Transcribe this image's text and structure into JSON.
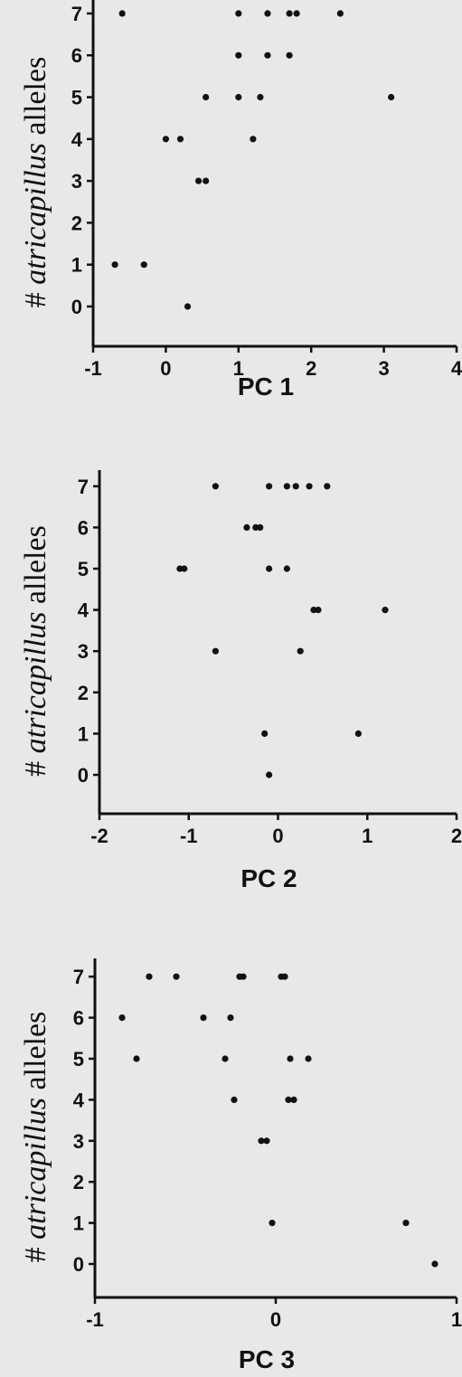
{
  "chart_data": [
    {
      "type": "scatter",
      "xlabel": "PC 1",
      "ylabel_parts": [
        "# ",
        "atricapillus",
        " alleles"
      ],
      "xlim": [
        -1,
        4
      ],
      "ylim": [
        -1,
        7
      ],
      "x_ticks": [
        -1,
        0,
        1,
        2,
        3,
        4
      ],
      "y_ticks": [
        0,
        1,
        2,
        3,
        4,
        5,
        6,
        7
      ],
      "points": [
        {
          "x": -0.6,
          "y": 7
        },
        {
          "x": 1.0,
          "y": 7
        },
        {
          "x": 1.4,
          "y": 7
        },
        {
          "x": 1.7,
          "y": 7
        },
        {
          "x": 1.8,
          "y": 7
        },
        {
          "x": 2.4,
          "y": 7
        },
        {
          "x": 1.0,
          "y": 6
        },
        {
          "x": 1.4,
          "y": 6
        },
        {
          "x": 1.7,
          "y": 6
        },
        {
          "x": 0.55,
          "y": 5
        },
        {
          "x": 1.0,
          "y": 5
        },
        {
          "x": 1.3,
          "y": 5
        },
        {
          "x": 3.1,
          "y": 5
        },
        {
          "x": 0.0,
          "y": 4
        },
        {
          "x": 0.2,
          "y": 4
        },
        {
          "x": 1.2,
          "y": 4
        },
        {
          "x": 0.45,
          "y": 3
        },
        {
          "x": 0.55,
          "y": 3
        },
        {
          "x": -0.7,
          "y": 1
        },
        {
          "x": -0.3,
          "y": 1
        },
        {
          "x": 0.3,
          "y": 0
        }
      ]
    },
    {
      "type": "scatter",
      "xlabel": "PC 2",
      "ylabel_parts": [
        "# ",
        "atricapillus",
        " alleles"
      ],
      "xlim": [
        -2,
        2
      ],
      "ylim": [
        -1,
        7
      ],
      "x_ticks": [
        -2,
        -1,
        0,
        1,
        2
      ],
      "y_ticks": [
        0,
        1,
        2,
        3,
        4,
        5,
        6,
        7
      ],
      "points": [
        {
          "x": -0.7,
          "y": 7
        },
        {
          "x": -0.1,
          "y": 7
        },
        {
          "x": 0.1,
          "y": 7
        },
        {
          "x": 0.2,
          "y": 7
        },
        {
          "x": 0.35,
          "y": 7
        },
        {
          "x": 0.55,
          "y": 7
        },
        {
          "x": -0.35,
          "y": 6
        },
        {
          "x": -0.25,
          "y": 6
        },
        {
          "x": -0.2,
          "y": 6
        },
        {
          "x": -1.1,
          "y": 5
        },
        {
          "x": -1.05,
          "y": 5
        },
        {
          "x": -0.1,
          "y": 5
        },
        {
          "x": 0.1,
          "y": 5
        },
        {
          "x": 0.4,
          "y": 4
        },
        {
          "x": 0.45,
          "y": 4
        },
        {
          "x": 1.2,
          "y": 4
        },
        {
          "x": -0.7,
          "y": 3
        },
        {
          "x": 0.25,
          "y": 3
        },
        {
          "x": -0.15,
          "y": 1
        },
        {
          "x": 0.9,
          "y": 1
        },
        {
          "x": -0.1,
          "y": 0
        }
      ]
    },
    {
      "type": "scatter",
      "xlabel": "PC 3",
      "ylabel_parts": [
        "# ",
        "atricapillus",
        " alleles"
      ],
      "xlim": [
        -1,
        1
      ],
      "ylim": [
        -1,
        7
      ],
      "x_ticks": [
        -1,
        0,
        1
      ],
      "y_ticks": [
        0,
        1,
        2,
        3,
        4,
        5,
        6,
        7
      ],
      "points": [
        {
          "x": -0.7,
          "y": 7
        },
        {
          "x": -0.55,
          "y": 7
        },
        {
          "x": -0.2,
          "y": 7
        },
        {
          "x": -0.18,
          "y": 7
        },
        {
          "x": 0.03,
          "y": 7
        },
        {
          "x": 0.05,
          "y": 7
        },
        {
          "x": -0.85,
          "y": 6
        },
        {
          "x": -0.4,
          "y": 6
        },
        {
          "x": -0.25,
          "y": 6
        },
        {
          "x": -0.77,
          "y": 5
        },
        {
          "x": -0.28,
          "y": 5
        },
        {
          "x": 0.08,
          "y": 5
        },
        {
          "x": 0.18,
          "y": 5
        },
        {
          "x": -0.23,
          "y": 4
        },
        {
          "x": 0.07,
          "y": 4
        },
        {
          "x": 0.1,
          "y": 4
        },
        {
          "x": -0.08,
          "y": 3
        },
        {
          "x": -0.05,
          "y": 3
        },
        {
          "x": -0.02,
          "y": 1
        },
        {
          "x": 0.72,
          "y": 1
        },
        {
          "x": 0.88,
          "y": 0
        }
      ]
    }
  ],
  "colors": {
    "background": "#e8e8e8",
    "ink": "#111111"
  }
}
